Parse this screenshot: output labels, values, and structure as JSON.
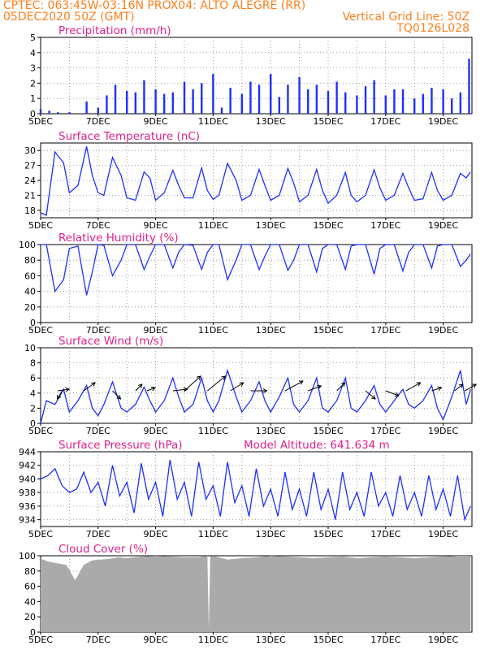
{
  "header": {
    "line1": "CPTEC:   063:45W-03:16N   PROX04: ALTO ALEGRE (RR)",
    "line2_left": "05DEC2020 50Z (GMT)",
    "line2_right": "Vertical Grid Line: 50Z",
    "line3_right": "TQ0126L028"
  },
  "colors": {
    "header": "#ff7f1a",
    "title": "#e0208a",
    "series": "#1f2fff",
    "cloud": "#aaaaaa",
    "grid": "#888888"
  },
  "chart_data": [
    {
      "type": "bar",
      "title": "Precipitation  (mm/h)",
      "ylim": [
        0,
        5
      ],
      "yticks": [
        "0",
        "1",
        "2",
        "3",
        "4",
        "5"
      ],
      "xticks": [
        "5DEC",
        "7DEC",
        "9DEC",
        "11DEC",
        "13DEC",
        "15DEC",
        "17DEC",
        "19DEC"
      ],
      "days": [
        5,
        5.3,
        5.6,
        6,
        6.3,
        6.6,
        7,
        7.3,
        7.6,
        8,
        8.3,
        8.6,
        9,
        9.3,
        9.6,
        10,
        10.3,
        10.6,
        11,
        11.3,
        11.6,
        12,
        12.3,
        12.6,
        13,
        13.3,
        13.6,
        14,
        14.3,
        14.6,
        15,
        15.3,
        15.6,
        16,
        16.3,
        16.6,
        17,
        17.3,
        17.6,
        18,
        18.3,
        18.6,
        19,
        19.3,
        19.6,
        19.9
      ],
      "values": [
        0.3,
        0.2,
        0.1,
        0.1,
        0.0,
        0.8,
        0.4,
        1.2,
        1.9,
        1.5,
        1.4,
        2.2,
        1.6,
        1.3,
        1.4,
        2.1,
        1.6,
        2.0,
        2.6,
        0.4,
        1.7,
        1.3,
        2.1,
        1.9,
        2.6,
        1.1,
        1.9,
        2.4,
        1.6,
        1.9,
        1.5,
        2.1,
        1.4,
        1.2,
        1.8,
        2.2,
        1.2,
        1.6,
        1.6,
        1.0,
        1.3,
        1.7,
        1.6,
        1.0,
        1.4,
        3.6
      ]
    },
    {
      "type": "line",
      "title": "Surface Temperature  (nC)",
      "ylim": [
        16.5,
        31.5
      ],
      "yticks": [
        "18",
        "21",
        "24",
        "27",
        "30"
      ],
      "xticks": [
        "5DEC",
        "7DEC",
        "9DEC",
        "11DEC",
        "13DEC",
        "15DEC",
        "17DEC",
        "19DEC"
      ],
      "x": [
        5,
        5.2,
        5.5,
        5.8,
        6,
        6.3,
        6.6,
        6.8,
        7,
        7.2,
        7.5,
        7.8,
        8,
        8.3,
        8.6,
        8.8,
        9,
        9.3,
        9.6,
        9.8,
        10,
        10.3,
        10.6,
        10.8,
        11,
        11.2,
        11.5,
        11.8,
        12,
        12.3,
        12.6,
        12.8,
        13,
        13.3,
        13.6,
        13.8,
        14,
        14.3,
        14.6,
        14.8,
        15,
        15.3,
        15.6,
        15.8,
        16,
        16.3,
        16.6,
        16.8,
        17,
        17.3,
        17.6,
        17.8,
        18,
        18.3,
        18.6,
        18.8,
        19,
        19.3,
        19.6,
        19.8,
        19.95
      ],
      "values": [
        17.5,
        17.0,
        29.7,
        27.5,
        21.5,
        23.0,
        30.8,
        25.0,
        21.5,
        21.0,
        28.6,
        25.0,
        20.5,
        20.0,
        25.7,
        24.5,
        20.0,
        21.5,
        26.0,
        23.0,
        20.5,
        20.5,
        26.5,
        22.0,
        20.2,
        21.0,
        27.4,
        24.0,
        20.0,
        21.0,
        26.2,
        23.0,
        20.0,
        21.0,
        26.4,
        23.5,
        19.7,
        21.0,
        26.2,
        22.0,
        19.4,
        21.0,
        25.6,
        21.0,
        19.7,
        21.0,
        26.1,
        22.5,
        20.0,
        21.0,
        25.4,
        22.5,
        20.0,
        20.3,
        25.6,
        22.0,
        20.0,
        21.0,
        25.4,
        24.5,
        25.7
      ]
    },
    {
      "type": "line",
      "title": "Relative Humidity  (%)",
      "ylim": [
        0,
        100
      ],
      "yticks": [
        "0",
        "20",
        "40",
        "60",
        "80",
        "100"
      ],
      "xticks": [
        "5DEC",
        "7DEC",
        "9DEC",
        "11DEC",
        "13DEC",
        "15DEC",
        "17DEC",
        "19DEC"
      ],
      "x": [
        5,
        5.2,
        5.5,
        5.8,
        6,
        6.3,
        6.6,
        6.8,
        7,
        7.2,
        7.5,
        7.8,
        8,
        8.3,
        8.6,
        8.8,
        9,
        9.3,
        9.6,
        9.8,
        10,
        10.3,
        10.6,
        10.8,
        11,
        11.2,
        11.5,
        11.8,
        12,
        12.3,
        12.6,
        12.8,
        13,
        13.3,
        13.6,
        13.8,
        14,
        14.3,
        14.6,
        14.8,
        15,
        15.3,
        15.6,
        15.8,
        16,
        16.3,
        16.6,
        16.8,
        17,
        17.3,
        17.6,
        17.8,
        18,
        18.3,
        18.6,
        18.8,
        19,
        19.3,
        19.6,
        19.8,
        19.95
      ],
      "values": [
        100,
        100,
        40,
        55,
        95,
        98,
        35,
        65,
        100,
        99,
        60,
        80,
        100,
        100,
        68,
        85,
        100,
        100,
        70,
        90,
        100,
        99,
        68,
        90,
        100,
        100,
        55,
        80,
        100,
        100,
        68,
        85,
        100,
        100,
        67,
        80,
        100,
        100,
        65,
        95,
        100,
        100,
        68,
        98,
        100,
        100,
        62,
        95,
        100,
        100,
        66,
        90,
        100,
        100,
        70,
        98,
        100,
        100,
        72,
        80,
        88
      ]
    },
    {
      "type": "line",
      "title": "Surface Wind  (m/s)",
      "ylim": [
        0,
        10
      ],
      "yticks": [
        "0",
        "2",
        "4",
        "6",
        "8",
        "10"
      ],
      "xticks": [
        "5DEC",
        "7DEC",
        "9DEC",
        "11DEC",
        "13DEC",
        "15DEC",
        "17DEC",
        "19DEC"
      ],
      "x": [
        5,
        5.2,
        5.5,
        5.8,
        6,
        6.3,
        6.6,
        6.8,
        7,
        7.2,
        7.5,
        7.8,
        8,
        8.3,
        8.6,
        8.8,
        9,
        9.3,
        9.6,
        9.8,
        10,
        10.3,
        10.6,
        10.8,
        11,
        11.2,
        11.5,
        11.8,
        12,
        12.3,
        12.6,
        12.8,
        13,
        13.3,
        13.6,
        13.8,
        14,
        14.3,
        14.6,
        14.8,
        15,
        15.3,
        15.6,
        15.8,
        16,
        16.3,
        16.6,
        16.8,
        17,
        17.3,
        17.6,
        17.8,
        18,
        18.3,
        18.6,
        18.8,
        19,
        19.3,
        19.6,
        19.8,
        19.95
      ],
      "values": [
        0.0,
        3.0,
        2.5,
        4.5,
        1.5,
        3.0,
        5.0,
        2.0,
        1.0,
        2.5,
        5.5,
        2.0,
        1.5,
        2.5,
        4.8,
        3.0,
        1.5,
        3.0,
        6.0,
        3.5,
        1.5,
        2.5,
        6.0,
        3.0,
        1.5,
        3.0,
        7.0,
        3.5,
        1.5,
        3.0,
        5.5,
        3.0,
        1.5,
        3.5,
        6.0,
        2.5,
        1.5,
        3.0,
        6.0,
        2.0,
        1.5,
        3.0,
        6.0,
        2.0,
        1.5,
        3.0,
        5.0,
        2.5,
        1.5,
        3.0,
        4.5,
        2.5,
        2.0,
        3.0,
        5.0,
        2.0,
        0.5,
        3.5,
        7.0,
        2.5,
        4.5
      ],
      "arrows": [
        {
          "day": 5.6,
          "dx": 14,
          "dy": -2
        },
        {
          "day": 5.75,
          "dx": -6,
          "dy": 10
        },
        {
          "day": 6.5,
          "dx": 14,
          "dy": -10
        },
        {
          "day": 7.5,
          "dx": 10,
          "dy": 10
        },
        {
          "day": 8.3,
          "dx": 8,
          "dy": -8
        },
        {
          "day": 8.7,
          "dx": 10,
          "dy": -4
        },
        {
          "day": 9.6,
          "dx": 18,
          "dy": -2
        },
        {
          "day": 10.0,
          "dx": 20,
          "dy": -18
        },
        {
          "day": 10.8,
          "dx": 22,
          "dy": -18
        },
        {
          "day": 11.6,
          "dx": 16,
          "dy": -10
        },
        {
          "day": 12.3,
          "dx": 20,
          "dy": 0
        },
        {
          "day": 13.5,
          "dx": 22,
          "dy": -12
        },
        {
          "day": 14.3,
          "dx": 16,
          "dy": -6
        },
        {
          "day": 15.3,
          "dx": 10,
          "dy": -10
        },
        {
          "day": 16.3,
          "dx": 12,
          "dy": 10
        },
        {
          "day": 17.0,
          "dx": 16,
          "dy": 6
        },
        {
          "day": 17.7,
          "dx": 18,
          "dy": -10
        },
        {
          "day": 18.6,
          "dx": 12,
          "dy": -4
        },
        {
          "day": 19.4,
          "dx": 10,
          "dy": -8
        },
        {
          "day": 19.75,
          "dx": 14,
          "dy": -8
        }
      ]
    },
    {
      "type": "line",
      "title": "Surface Pressure  (hPa)",
      "subtitle": "Model Altitude: 641.634  m",
      "ylim": [
        933,
        944
      ],
      "yticks": [
        "934",
        "936",
        "938",
        "940",
        "942",
        "944"
      ],
      "xticks": [
        "5DEC",
        "7DEC",
        "9DEC",
        "11DEC",
        "13DEC",
        "15DEC",
        "17DEC",
        "19DEC"
      ],
      "x": [
        5,
        5.25,
        5.5,
        5.75,
        6,
        6.25,
        6.5,
        6.75,
        7,
        7.25,
        7.5,
        7.75,
        8,
        8.25,
        8.5,
        8.75,
        9,
        9.25,
        9.5,
        9.75,
        10,
        10.25,
        10.5,
        10.75,
        11,
        11.25,
        11.5,
        11.75,
        12,
        12.25,
        12.5,
        12.75,
        13,
        13.25,
        13.5,
        13.75,
        14,
        14.25,
        14.5,
        14.75,
        15,
        15.25,
        15.5,
        15.75,
        16,
        16.25,
        16.5,
        16.75,
        17,
        17.25,
        17.5,
        17.75,
        18,
        18.25,
        18.5,
        18.75,
        19,
        19.25,
        19.5,
        19.75,
        19.95
      ],
      "values": [
        940.0,
        940.5,
        941.5,
        939.0,
        938.0,
        938.5,
        941.0,
        938.0,
        939.5,
        936.0,
        942.0,
        937.5,
        939.5,
        935.0,
        942.3,
        937.0,
        939.5,
        934.5,
        942.8,
        937.0,
        939.5,
        934.5,
        942.5,
        937.0,
        939.0,
        934.5,
        942.5,
        936.5,
        939.0,
        934.5,
        941.5,
        936.0,
        938.5,
        934.5,
        941.0,
        935.5,
        938.5,
        934.5,
        941.0,
        935.5,
        938.5,
        934.0,
        941.0,
        935.5,
        938.0,
        934.5,
        941.0,
        936.0,
        938.0,
        934.5,
        940.5,
        935.5,
        938.0,
        934.5,
        940.5,
        935.5,
        938.5,
        934.5,
        940.5,
        934.0,
        936.0
      ]
    },
    {
      "type": "area",
      "title": "Cloud Cover  (%)",
      "ylim": [
        0,
        100
      ],
      "yticks": [
        "0",
        "20",
        "40",
        "60",
        "80",
        "100"
      ],
      "xticks": [
        "5DEC",
        "7DEC",
        "9DEC",
        "11DEC",
        "13DEC",
        "15DEC",
        "17DEC",
        "19DEC"
      ],
      "x": [
        5,
        5.3,
        5.6,
        5.9,
        6.2,
        6.5,
        6.8,
        7.1,
        7.4,
        7.7,
        8,
        8.5,
        9,
        9.5,
        10,
        10.5,
        10.8,
        10.85,
        10.9,
        11,
        11.5,
        12,
        12.5,
        13,
        13.5,
        14,
        14.5,
        15,
        15.5,
        16,
        16.5,
        17,
        17.5,
        18,
        18.5,
        19,
        19.5,
        19.95
      ],
      "values": [
        96,
        92,
        90,
        88,
        68,
        88,
        94,
        95,
        96,
        98,
        97,
        99,
        100,
        99,
        98,
        98,
        100,
        3,
        99,
        100,
        95,
        97,
        98,
        100,
        99,
        98,
        97,
        98,
        99,
        97,
        98,
        99,
        98,
        97,
        98,
        99,
        100,
        100
      ]
    }
  ]
}
